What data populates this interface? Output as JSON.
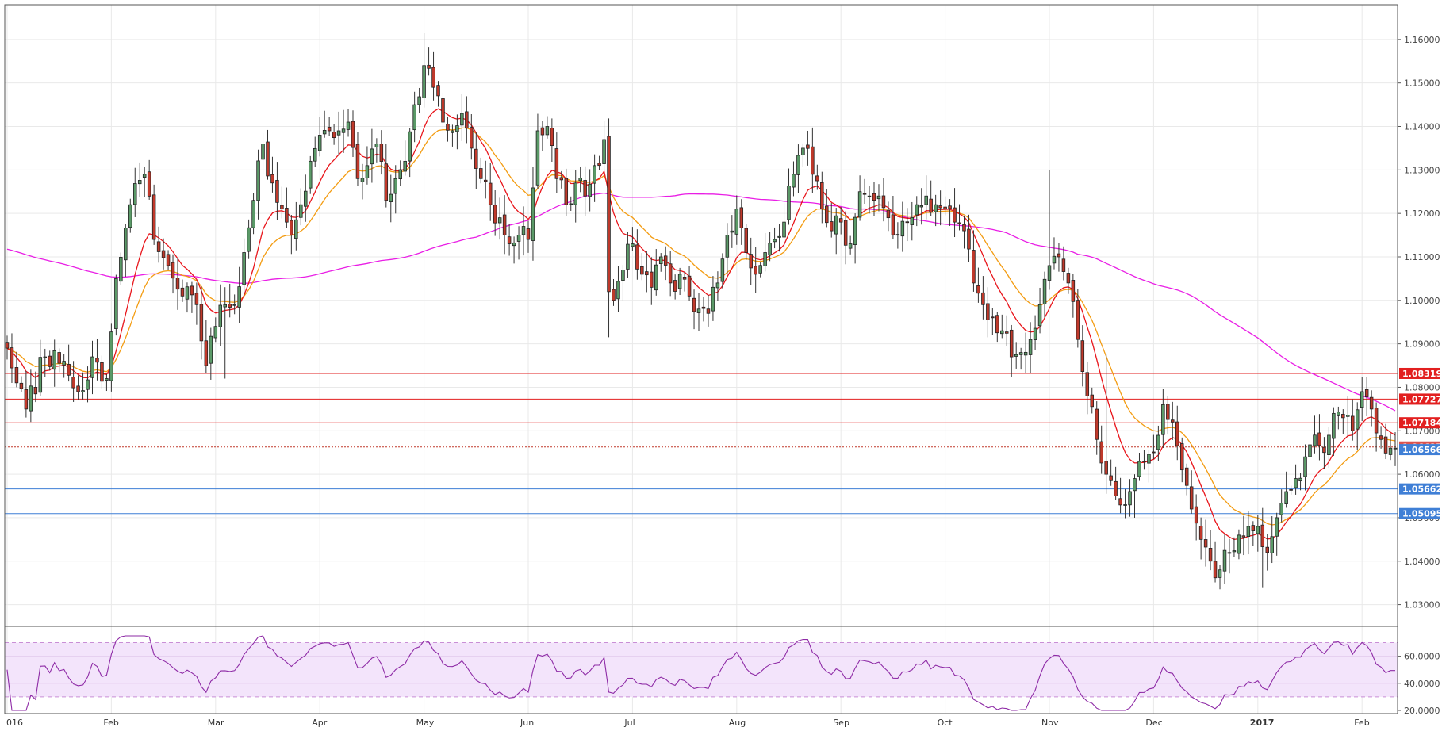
{
  "chart_data": {
    "type": "candlestick",
    "colors": {
      "up": "#5b9a68",
      "down": "#c0392b",
      "ema_fast": "#e8151b",
      "ema_slow": "#f39c12",
      "ma_long": "#e91ee5",
      "resistance": "#e21f1f",
      "support": "#3f7fd6",
      "rsi": "#8e2ba6",
      "rsi_band": "#f3e4fb",
      "grid": "#e9e9e9"
    },
    "price_axis": {
      "ylim": [
        1.025,
        1.168
      ],
      "ticks": [
        "1.03000",
        "1.04000",
        "1.05000",
        "1.06000",
        "1.07000",
        "1.08000",
        "1.09000",
        "1.10000",
        "1.11000",
        "1.12000",
        "1.13000",
        "1.14000",
        "1.15000",
        "1.16000"
      ]
    },
    "x_axis": {
      "labels": [
        "016",
        "Feb",
        "Mar",
        "Apr",
        "May",
        "Jun",
        "Jul",
        "Aug",
        "Sep",
        "Oct",
        "Nov",
        "Dec",
        "2017",
        "Feb"
      ],
      "label_days": [
        0,
        22,
        44,
        66,
        88,
        110,
        132,
        154,
        176,
        198,
        220,
        242,
        264,
        286
      ]
    },
    "levels": [
      {
        "value": 1.08319,
        "label": "1.08319",
        "kind": "resistance"
      },
      {
        "value": 1.07727,
        "label": "1.07727",
        "kind": "resistance"
      },
      {
        "value": 1.07184,
        "label": "1.07184",
        "kind": "resistance"
      },
      {
        "value": 1.06627,
        "label": "1.06627",
        "kind": "current"
      },
      {
        "value": 1.06566,
        "label": "1.06566",
        "kind": "support-tag"
      },
      {
        "value": 1.05662,
        "label": "1.05662",
        "kind": "support"
      },
      {
        "value": 1.05095,
        "label": "1.05095",
        "kind": "support"
      }
    ],
    "close_anchors": [
      [
        0,
        1.089
      ],
      [
        4,
        1.075
      ],
      [
        8,
        1.087
      ],
      [
        12,
        1.086
      ],
      [
        15,
        1.079
      ],
      [
        18,
        1.087
      ],
      [
        21,
        1.082
      ],
      [
        23,
        1.105
      ],
      [
        26,
        1.122
      ],
      [
        29,
        1.129
      ],
      [
        31,
        1.114
      ],
      [
        34,
        1.108
      ],
      [
        37,
        1.101
      ],
      [
        40,
        1.099
      ],
      [
        42,
        1.085
      ],
      [
        44,
        1.094
      ],
      [
        46,
        1.099
      ],
      [
        48,
        1.099
      ],
      [
        50,
        1.111
      ],
      [
        52,
        1.123
      ],
      [
        54,
        1.136
      ],
      [
        56,
        1.127
      ],
      [
        58,
        1.121
      ],
      [
        60,
        1.115
      ],
      [
        62,
        1.122
      ],
      [
        64,
        1.132
      ],
      [
        66,
        1.138
      ],
      [
        68,
        1.139
      ],
      [
        70,
        1.139
      ],
      [
        72,
        1.141
      ],
      [
        74,
        1.128
      ],
      [
        76,
        1.131
      ],
      [
        78,
        1.136
      ],
      [
        80,
        1.123
      ],
      [
        82,
        1.128
      ],
      [
        84,
        1.132
      ],
      [
        86,
        1.145
      ],
      [
        88,
        1.154
      ],
      [
        90,
        1.149
      ],
      [
        92,
        1.141
      ],
      [
        94,
        1.139
      ],
      [
        96,
        1.143
      ],
      [
        98,
        1.135
      ],
      [
        100,
        1.128
      ],
      [
        102,
        1.122
      ],
      [
        104,
        1.119
      ],
      [
        106,
        1.113
      ],
      [
        108,
        1.115
      ],
      [
        110,
        1.114
      ],
      [
        112,
        1.139
      ],
      [
        114,
        1.14
      ],
      [
        116,
        1.128
      ],
      [
        118,
        1.122
      ],
      [
        120,
        1.127
      ],
      [
        122,
        1.124
      ],
      [
        124,
        1.131
      ],
      [
        126,
        1.137
      ],
      [
        127,
        1.102
      ],
      [
        128,
        1.1
      ],
      [
        130,
        1.107
      ],
      [
        132,
        1.113
      ],
      [
        134,
        1.106
      ],
      [
        136,
        1.103
      ],
      [
        138,
        1.11
      ],
      [
        140,
        1.104
      ],
      [
        142,
        1.106
      ],
      [
        144,
        1.101
      ],
      [
        146,
        1.098
      ],
      [
        148,
        1.097
      ],
      [
        150,
        1.104
      ],
      [
        152,
        1.115
      ],
      [
        154,
        1.121
      ],
      [
        156,
        1.111
      ],
      [
        158,
        1.106
      ],
      [
        160,
        1.111
      ],
      [
        162,
        1.114
      ],
      [
        164,
        1.118
      ],
      [
        166,
        1.129
      ],
      [
        168,
        1.135
      ],
      [
        170,
        1.129
      ],
      [
        172,
        1.121
      ],
      [
        174,
        1.116
      ],
      [
        176,
        1.118
      ],
      [
        178,
        1.113
      ],
      [
        180,
        1.125
      ],
      [
        182,
        1.124
      ],
      [
        184,
        1.124
      ],
      [
        186,
        1.119
      ],
      [
        188,
        1.115
      ],
      [
        190,
        1.118
      ],
      [
        192,
        1.122
      ],
      [
        194,
        1.124
      ],
      [
        196,
        1.122
      ],
      [
        198,
        1.121
      ],
      [
        200,
        1.118
      ],
      [
        202,
        1.116
      ],
      [
        204,
        1.104
      ],
      [
        206,
        1.099
      ],
      [
        208,
        1.096
      ],
      [
        210,
        1.093
      ],
      [
        212,
        1.087
      ],
      [
        214,
        1.088
      ],
      [
        216,
        1.091
      ],
      [
        218,
        1.099
      ],
      [
        220,
        1.108
      ],
      [
        222,
        1.11
      ],
      [
        224,
        1.104
      ],
      [
        226,
        1.091
      ],
      [
        228,
        1.078
      ],
      [
        230,
        1.068
      ],
      [
        232,
        1.06
      ],
      [
        234,
        1.055
      ],
      [
        236,
        1.053
      ],
      [
        238,
        1.059
      ],
      [
        240,
        1.063
      ],
      [
        242,
        1.065
      ],
      [
        244,
        1.076
      ],
      [
        246,
        1.072
      ],
      [
        248,
        1.061
      ],
      [
        250,
        1.052
      ],
      [
        252,
        1.045
      ],
      [
        254,
        1.04
      ],
      [
        256,
        1.038
      ],
      [
        258,
        1.042
      ],
      [
        260,
        1.046
      ],
      [
        262,
        1.048
      ],
      [
        264,
        1.048
      ],
      [
        266,
        1.042
      ],
      [
        268,
        1.05
      ],
      [
        270,
        1.056
      ],
      [
        272,
        1.059
      ],
      [
        274,
        1.064
      ],
      [
        276,
        1.069
      ],
      [
        278,
        1.065
      ],
      [
        280,
        1.074
      ],
      [
        282,
        1.073
      ],
      [
        284,
        1.07
      ],
      [
        286,
        1.079
      ],
      [
        288,
        1.075
      ],
      [
        290,
        1.068
      ],
      [
        292,
        1.066
      ]
    ],
    "rsi_axis": {
      "ylim": [
        20,
        75
      ],
      "ticks": [
        "20.0000",
        "40.0000",
        "60.0000"
      ],
      "band": [
        30,
        70
      ]
    }
  }
}
